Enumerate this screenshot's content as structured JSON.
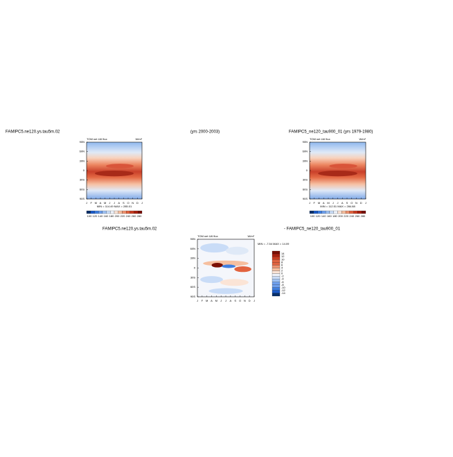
{
  "subtitle": "(yrs 2000-2003)",
  "x_labels": [
    "J",
    "F",
    "M",
    "A",
    "M",
    "J",
    "J",
    "A",
    "S",
    "O",
    "N",
    "D",
    "J"
  ],
  "y_labels": [
    "90N",
    "60N",
    "30N",
    "0",
    "30S",
    "60S",
    "90S"
  ],
  "panels": [
    {
      "title": "FAMIPC5.ne120.ys.tau5m.02",
      "variable": "TOM net LW flux",
      "units": "W/m²",
      "stats": "MIN = 114.49 MAX = 285.01",
      "colorbar_labels": [
        100,
        120,
        140,
        160,
        180,
        200,
        220,
        240,
        260,
        280
      ]
    },
    {
      "title": "FAMIPC5_ne120_tau900_01 (yrs 1979-1980)",
      "variable": "TOM net LW flux",
      "units": "W/m²",
      "stats": "MIN = 112.51 MAX = 284.88",
      "colorbar_labels": [
        100,
        120,
        140,
        160,
        180,
        200,
        220,
        240,
        260,
        280
      ]
    },
    {
      "title": "FAMIPC5.ne120.ys.tau5m.02",
      "title_right": "- FAMIPC5_ne120_tau900_01",
      "variable": "TOM net LW flux",
      "units": "W/m²",
      "stats": "MIN = -7.54 MAX = 14.09",
      "colorbar_labels": [
        14,
        12,
        10,
        8,
        6,
        4,
        2,
        0,
        -2,
        -4,
        -6,
        -8,
        -10,
        -12,
        -14
      ]
    }
  ]
}
